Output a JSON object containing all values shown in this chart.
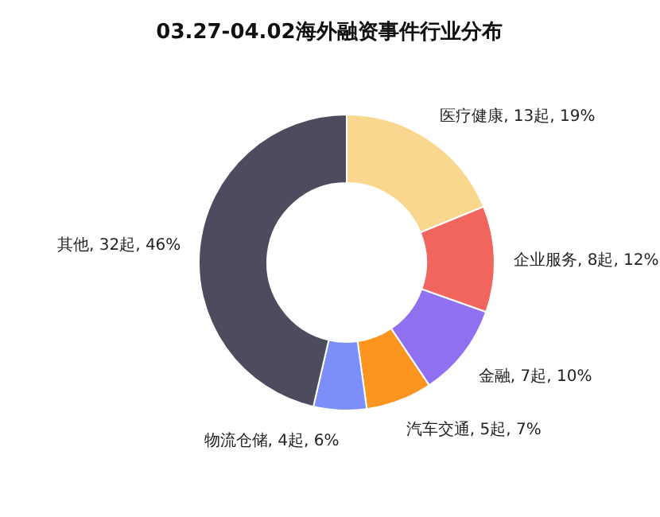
{
  "chart_data": {
    "type": "donut",
    "title": "03.27-04.02海外融资事件行业分布",
    "categories": [
      "医疗健康",
      "企业服务",
      "金融",
      "汽车交通",
      "物流仓储",
      "其他"
    ],
    "values": [
      13,
      8,
      7,
      5,
      4,
      32
    ],
    "value_labels": [
      "13起, 19%",
      "8起, 12%",
      "7起, 10%",
      "5起, 7%",
      "4起, 6%",
      "32起, 46%"
    ],
    "colors": [
      "#f9d78f",
      "#f0665e",
      "#8e70f0",
      "#fc9520",
      "#7b8ef9",
      "#4d4c5e"
    ],
    "legend": false
  }
}
